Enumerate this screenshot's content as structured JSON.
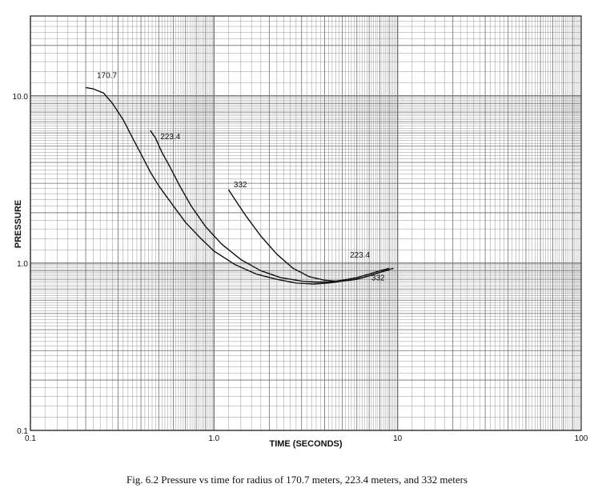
{
  "caption": "Fig. 6.2 Pressure vs time for radius of 170.7 meters, 223.4 meters, and 332 meters",
  "chart_data": {
    "type": "line",
    "xscale": "log",
    "yscale": "log",
    "xlim": [
      0.1,
      100
    ],
    "ylim": [
      0.1,
      30
    ],
    "xlabel": "TIME (SECONDS)",
    "ylabel": "PRESSURE",
    "grid": true,
    "x_ticks": [
      "0.1",
      "1.0",
      "10",
      "100"
    ],
    "y_ticks": [
      "0.1",
      "1.0",
      "10.0"
    ],
    "colors": {
      "grid": "#6e6e6e",
      "curve": "#111111",
      "paper": "#ffffff"
    },
    "series": [
      {
        "name": "170.7",
        "x": [
          0.2,
          0.22,
          0.25,
          0.28,
          0.32,
          0.36,
          0.4,
          0.45,
          0.5,
          0.6,
          0.7,
          0.85,
          1.0,
          1.3,
          1.7,
          2.2,
          2.8,
          3.5,
          4.2,
          5.0,
          6.0,
          7.0,
          8.0,
          9.0
        ],
        "y": [
          11.2,
          11.0,
          10.4,
          9.0,
          7.2,
          5.6,
          4.5,
          3.5,
          2.9,
          2.2,
          1.75,
          1.4,
          1.18,
          0.98,
          0.86,
          0.8,
          0.76,
          0.75,
          0.76,
          0.78,
          0.8,
          0.84,
          0.88,
          0.91
        ]
      },
      {
        "name": "223.4",
        "x": [
          0.45,
          0.48,
          0.52,
          0.58,
          0.65,
          0.75,
          0.9,
          1.1,
          1.4,
          1.8,
          2.3,
          3.0,
          3.6,
          4.2,
          5.0,
          6.0,
          7.0,
          8.0,
          9.0
        ],
        "y": [
          6.2,
          5.6,
          4.6,
          3.7,
          2.9,
          2.2,
          1.65,
          1.3,
          1.05,
          0.9,
          0.82,
          0.78,
          0.77,
          0.77,
          0.79,
          0.82,
          0.86,
          0.9,
          0.93
        ]
      },
      {
        "name": "332",
        "x": [
          1.2,
          1.3,
          1.5,
          1.8,
          2.2,
          2.7,
          3.3,
          4.0,
          4.6,
          5.5,
          6.5,
          7.5,
          8.5,
          9.5
        ],
        "y": [
          2.75,
          2.4,
          1.9,
          1.45,
          1.13,
          0.93,
          0.83,
          0.79,
          0.78,
          0.79,
          0.82,
          0.86,
          0.9,
          0.93
        ]
      }
    ],
    "annotations": [
      {
        "text": "170.7",
        "x": 0.23,
        "y": 12.8
      },
      {
        "text": "223.4",
        "x": 0.51,
        "y": 5.5
      },
      {
        "text": "332",
        "x": 1.28,
        "y": 2.85
      },
      {
        "text": "223.4",
        "x": 5.5,
        "y": 1.08
      },
      {
        "text": "332",
        "x": 7.2,
        "y": 0.79
      }
    ]
  }
}
